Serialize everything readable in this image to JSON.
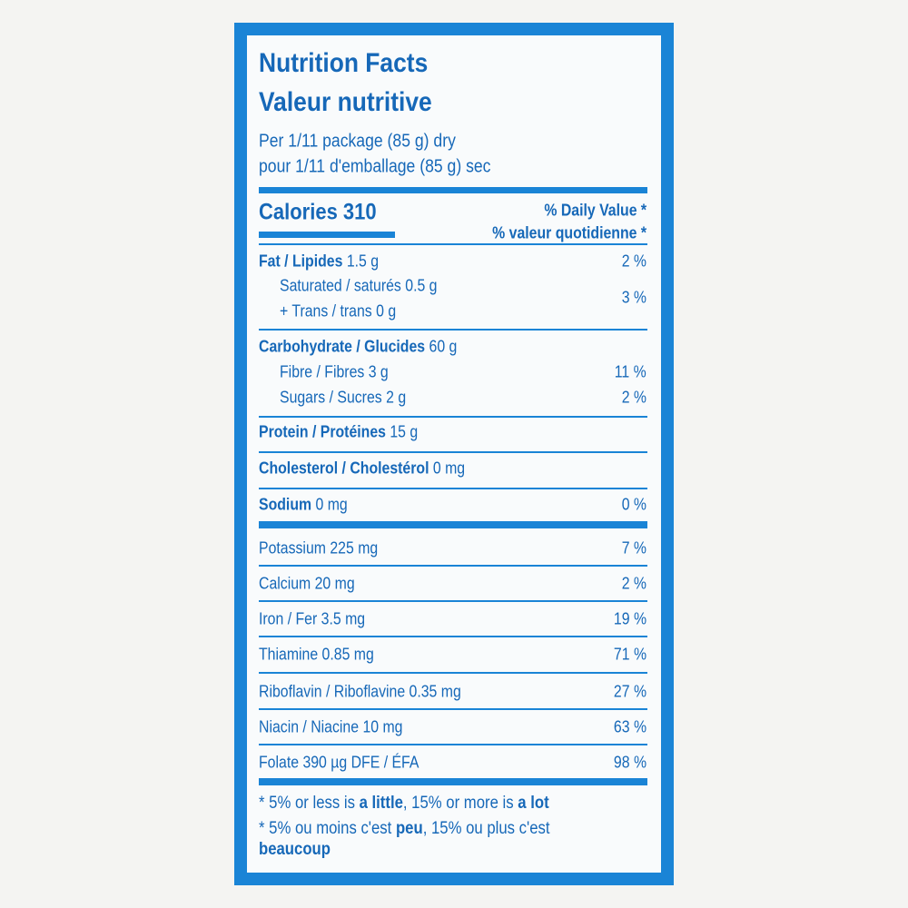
{
  "title": "Nutrition Facts",
  "title_fr": "Valeur nutritive",
  "serving": "Per 1/11 package (85 g) dry",
  "serving_fr": "pour 1/11 d'emballage (85 g) sec",
  "calories": "Calories 310",
  "dv_header": "% Daily Value *",
  "dv_header_fr": "% valeur quotidienne *",
  "nutrients": [
    {
      "name": "Fat / Lipides",
      "amount": "1.5 g",
      "dv": "2 %"
    },
    {
      "name": "Saturated / saturés",
      "amount": "0.5 g"
    },
    {
      "name": "+ Trans / trans",
      "amount": "0 g",
      "dv": "3 %"
    },
    {
      "name": "Carbohydrate / Glucides",
      "amount": "60 g"
    },
    {
      "name": "Fibre / Fibres",
      "amount": "3 g",
      "dv": "11 %"
    },
    {
      "name": "Sugars / Sucres",
      "amount": "2 g",
      "dv": "2 %"
    },
    {
      "name": "Protein / Protéines",
      "amount": "15 g"
    },
    {
      "name": "Cholesterol / Cholestérol",
      "amount": "0 mg"
    },
    {
      "name": "Sodium",
      "amount": "0 mg",
      "dv": "0 %"
    },
    {
      "name": "Potassium",
      "amount": "225 mg",
      "dv": "7 %"
    },
    {
      "name": "Calcium",
      "amount": "20 mg",
      "dv": "2 %"
    },
    {
      "name": "Iron / Fer",
      "amount": "3.5 mg",
      "dv": "19 %"
    },
    {
      "name": "Thiamine",
      "amount": "0.85 mg",
      "dv": "71 %"
    },
    {
      "name": "Riboflavin / Riboflavine",
      "amount": "0.35 mg",
      "dv": "27 %"
    },
    {
      "name": "Niacin / Niacine",
      "amount": "10 mg",
      "dv": "63 %"
    },
    {
      "name": "Folate",
      "amount": "390 µg DFE / ÉFA",
      "dv": "98 %"
    }
  ],
  "footnotes": [
    [
      "* 5% or less is ",
      "a little",
      ", 15% or more is ",
      "a lot"
    ],
    [
      "* 5% ou moins c'est ",
      "peu",
      ", 15% ou plus c'est ",
      "beaucoup"
    ]
  ]
}
